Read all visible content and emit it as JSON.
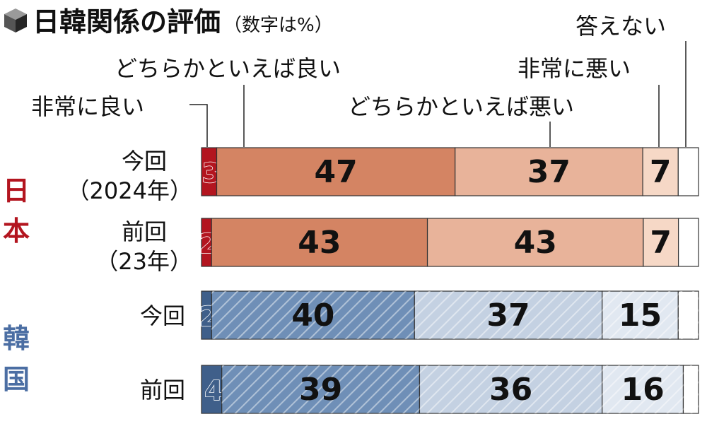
{
  "title": "日韓関係の評価",
  "subtitle": "（数字は%）",
  "colors": {
    "very_good": "#b3151f",
    "somewhat_good": "#d48463",
    "somewhat_bad": "#e8b39a",
    "very_bad": "#f6d8c6",
    "no_answer": "#ffffff",
    "korea_very_good": "#3f5f8a",
    "korea_somewhat_good": "#6f8fb7",
    "korea_somewhat_bad": "#c4d1e2",
    "korea_very_bad": "#e1e8f1",
    "japan_label": "#b3151f",
    "korea_label": "#4b6ea3"
  },
  "chart_data": {
    "type": "bar",
    "stacked": true,
    "orientation": "horizontal",
    "unit": "%",
    "title": "日韓関係の評価",
    "subtitle": "（数字は%）",
    "legend": [
      "非常に良い",
      "どちらかといえば良い",
      "どちらかといえば悪い",
      "非常に悪い",
      "答えない"
    ],
    "groups": [
      {
        "name": "日本",
        "rows": [
          {
            "label_lines": [
              "今回",
              "（2024年）"
            ],
            "values": [
              3,
              47,
              37,
              7,
              4
            ]
          },
          {
            "label_lines": [
              "前回",
              "（23年）"
            ],
            "values": [
              2,
              43,
              43,
              7,
              4
            ]
          }
        ]
      },
      {
        "name": "韓国",
        "rows": [
          {
            "label_lines": [
              "今回"
            ],
            "values": [
              2,
              40,
              37,
              15,
              4
            ]
          },
          {
            "label_lines": [
              "前回"
            ],
            "values": [
              4,
              39,
              36,
              16,
              3
            ]
          }
        ]
      }
    ],
    "data_labels_shown": [
      true,
      true,
      true,
      true,
      false
    ]
  }
}
